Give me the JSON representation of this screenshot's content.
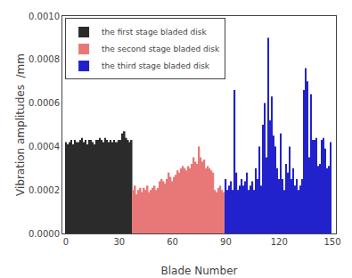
{
  "chart_data": {
    "type": "bar",
    "xlabel": "Blade Number",
    "ylabel": "Vibration amplitudes  /mm",
    "xlim": [
      -2,
      152
    ],
    "ylim": [
      0,
      0.001
    ],
    "xticks": [
      0,
      30,
      60,
      90,
      120,
      150
    ],
    "yticks": [
      {
        "value": 0,
        "label": "0.0000"
      },
      {
        "value": 0.0002,
        "label": "0.0002"
      },
      {
        "value": 0.0004,
        "label": "0.0004"
      },
      {
        "value": 0.0006,
        "label": "0.0006"
      },
      {
        "value": 0.0008,
        "label": "0.0008"
      },
      {
        "value": 0.001,
        "label": "0.0010"
      }
    ],
    "grid": false,
    "legend": "upper left",
    "series": [
      {
        "name": "the first stage bladed disk",
        "color": "#2b2b2b",
        "x": [
          0,
          1,
          2,
          3,
          4,
          5,
          6,
          7,
          8,
          9,
          10,
          11,
          12,
          13,
          14,
          15,
          16,
          17,
          18,
          19,
          20,
          21,
          22,
          23,
          24,
          25,
          26,
          27,
          28,
          29,
          30,
          31,
          32,
          33,
          34,
          35,
          36,
          37
        ],
        "values": [
          0.00042,
          0.00041,
          0.00042,
          0.00043,
          0.00041,
          0.00043,
          0.00042,
          0.00042,
          0.00043,
          0.00044,
          0.00042,
          0.00043,
          0.00041,
          0.00043,
          0.00043,
          0.00042,
          0.00041,
          0.00043,
          0.00043,
          0.00044,
          0.00043,
          0.00042,
          0.00044,
          0.00043,
          0.00042,
          0.00043,
          0.00042,
          0.00043,
          0.00042,
          0.00042,
          0.00043,
          0.00043,
          0.00046,
          0.00047,
          0.00044,
          0.00043,
          0.00042,
          0.00043
        ]
      },
      {
        "name": "the second stage bladed disk",
        "color": "#e87878",
        "x": [
          38,
          39,
          40,
          41,
          42,
          43,
          44,
          45,
          46,
          47,
          48,
          49,
          50,
          51,
          52,
          53,
          54,
          55,
          56,
          57,
          58,
          59,
          60,
          61,
          62,
          63,
          64,
          65,
          66,
          67,
          68,
          69,
          70,
          71,
          72,
          73,
          74,
          75,
          76,
          77,
          78,
          79,
          80,
          81,
          82,
          83,
          84,
          85,
          86,
          87,
          88,
          89
        ],
        "values": [
          0.0002,
          0.00022,
          0.00018,
          0.0002,
          0.00021,
          0.00019,
          0.00021,
          0.0002,
          0.00022,
          0.00019,
          0.0002,
          0.00021,
          0.00022,
          0.0002,
          0.00021,
          0.00024,
          0.00025,
          0.00024,
          0.00023,
          0.00025,
          0.00028,
          0.00026,
          0.00024,
          0.00026,
          0.00027,
          0.00029,
          0.00028,
          0.0003,
          0.00031,
          0.0003,
          0.00029,
          0.00031,
          0.0003,
          0.00032,
          0.00035,
          0.00033,
          0.00032,
          0.0004,
          0.00035,
          0.00033,
          0.00034,
          0.0003,
          0.00031,
          0.0003,
          0.00029,
          0.00028,
          0.0002,
          0.00019,
          0.00021,
          0.00022,
          0.0002,
          0.00019
        ]
      },
      {
        "name": "the third stage bladed disk",
        "color": "#2222cc",
        "x": [
          90,
          91,
          92,
          93,
          94,
          95,
          96,
          97,
          98,
          99,
          100,
          101,
          102,
          103,
          104,
          105,
          106,
          107,
          108,
          109,
          110,
          111,
          112,
          113,
          114,
          115,
          116,
          117,
          118,
          119,
          120,
          121,
          122,
          123,
          124,
          125,
          126,
          127,
          128,
          129,
          130,
          131,
          132,
          133,
          134,
          135,
          136,
          137,
          138,
          139,
          140,
          141,
          142,
          143,
          144,
          145,
          146,
          147,
          148,
          149
        ],
        "values": [
          0.00025,
          0.0002,
          0.00022,
          0.00024,
          0.0002,
          0.00066,
          0.00028,
          0.0002,
          0.00022,
          0.00025,
          0.00022,
          0.00024,
          0.00028,
          0.0002,
          0.00022,
          0.00024,
          0.0002,
          0.0003,
          0.00025,
          0.0004,
          0.00022,
          0.0005,
          0.0006,
          0.00035,
          0.0009,
          0.00052,
          0.00063,
          0.00045,
          0.0004,
          0.0003,
          0.00025,
          0.00046,
          0.00025,
          0.0002,
          0.00032,
          0.00028,
          0.0004,
          0.00025,
          0.0003,
          0.00022,
          0.00025,
          0.0002,
          0.00022,
          0.00025,
          0.00066,
          0.00076,
          0.0007,
          0.00035,
          0.00064,
          0.00043,
          0.00043,
          0.00044,
          0.00031,
          0.00032,
          0.00043,
          0.00044,
          0.00039,
          0.0003,
          0.00031,
          0.00042
        ]
      }
    ]
  }
}
